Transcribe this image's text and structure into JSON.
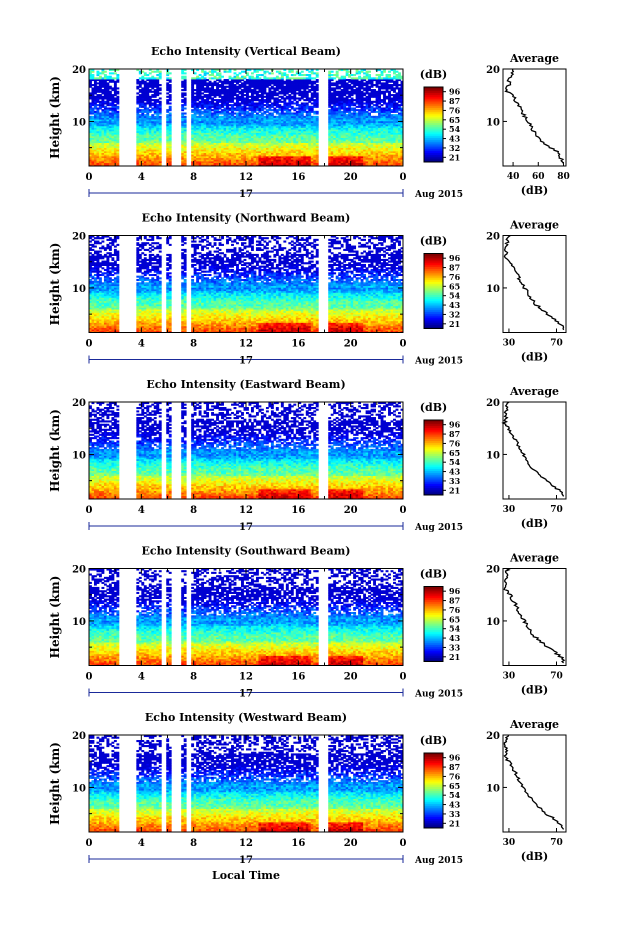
{
  "chart_data": {
    "type": "heatmap",
    "xlabel": "Local Time",
    "date_label": "Aug 2015",
    "day_label": "17",
    "ylabel": "Height (km)",
    "x_ticks": [
      "0",
      "4",
      "8",
      "12",
      "16",
      "20",
      "0"
    ],
    "x_tick_values": [
      0,
      4,
      8,
      12,
      16,
      20,
      24
    ],
    "xlim": [
      0,
      24
    ],
    "y_ticks": [
      "20",
      "10"
    ],
    "y_tick_values": [
      20,
      10
    ],
    "ylim": [
      1.5,
      20
    ],
    "data_gaps_hours": [
      [
        2.2,
        3.6
      ],
      [
        5.5,
        5.9
      ],
      [
        6.3,
        7.0
      ],
      [
        7.4,
        7.8
      ],
      [
        17.6,
        18.3
      ]
    ],
    "colorbar_label": "(dB)",
    "average_title": "Average",
    "average_xlabel": "(dB)",
    "panels": [
      {
        "title": "Echo Intensity (Vertical Beam)",
        "colorbar_ticks": [
          "96",
          "87",
          "76",
          "65",
          "54",
          "43",
          "32",
          "21"
        ],
        "avg_xticks": [
          "40",
          "60",
          "80"
        ],
        "avg_xlim": [
          32,
          82
        ],
        "avg_height": [
          20,
          19,
          18,
          17,
          16,
          15,
          14,
          13,
          12,
          11,
          10,
          9,
          8,
          7,
          6,
          5,
          4,
          3,
          2
        ],
        "avg_db": [
          40,
          39,
          36,
          37,
          34,
          40,
          42,
          45,
          47,
          49,
          52,
          54,
          57,
          60,
          64,
          70,
          76,
          78,
          80
        ]
      },
      {
        "title": "Echo Intensity (Northward Beam)",
        "colorbar_ticks": [
          "96",
          "87",
          "76",
          "65",
          "54",
          "43",
          "32",
          "21"
        ],
        "avg_xticks": [
          "30",
          "70"
        ],
        "avg_xlim": [
          25,
          78
        ],
        "avg_height": [
          20,
          19,
          18,
          17,
          16,
          15,
          14,
          13,
          12,
          11,
          10,
          9,
          8,
          7,
          6,
          5,
          4,
          3,
          2
        ],
        "avg_db": [
          30,
          29,
          27,
          28,
          26,
          31,
          33,
          36,
          38,
          41,
          43,
          46,
          49,
          52,
          57,
          62,
          69,
          74,
          76
        ]
      },
      {
        "title": "Echo Intensity (Eastward Beam)",
        "colorbar_ticks": [
          "96",
          "87",
          "76",
          "65",
          "54",
          "43",
          "33",
          "21"
        ],
        "avg_xticks": [
          "30",
          "70"
        ],
        "avg_xlim": [
          25,
          78
        ],
        "avg_height": [
          20,
          19,
          18,
          17,
          16,
          15,
          14,
          13,
          12,
          11,
          10,
          9,
          8,
          7,
          6,
          5,
          4,
          3,
          2
        ],
        "avg_db": [
          29,
          28,
          27,
          28,
          26,
          30,
          32,
          35,
          37,
          40,
          42,
          45,
          48,
          51,
          56,
          61,
          68,
          73,
          76
        ]
      },
      {
        "title": "Echo Intensity (Southward Beam)",
        "colorbar_ticks": [
          "96",
          "87",
          "76",
          "65",
          "54",
          "43",
          "33",
          "21"
        ],
        "avg_xticks": [
          "30",
          "70"
        ],
        "avg_xlim": [
          25,
          78
        ],
        "avg_height": [
          20,
          19,
          18,
          17,
          16,
          15,
          14,
          13,
          12,
          11,
          10,
          9,
          8,
          7,
          6,
          5,
          4,
          3,
          2
        ],
        "avg_db": [
          29,
          28,
          27,
          29,
          27,
          31,
          33,
          36,
          38,
          40,
          43,
          46,
          48,
          52,
          57,
          62,
          69,
          74,
          76
        ]
      },
      {
        "title": "Echo Intensity (Westward Beam)",
        "colorbar_ticks": [
          "96",
          "87",
          "76",
          "65",
          "54",
          "43",
          "33",
          "21"
        ],
        "avg_xticks": [
          "30",
          "70"
        ],
        "avg_xlim": [
          25,
          78
        ],
        "avg_height": [
          20,
          19,
          18,
          17,
          16,
          15,
          14,
          13,
          12,
          11,
          10,
          9,
          8,
          7,
          6,
          5,
          4,
          3,
          2
        ],
        "avg_db": [
          29,
          28,
          27,
          28,
          26,
          30,
          33,
          35,
          37,
          40,
          42,
          45,
          48,
          51,
          56,
          61,
          68,
          73,
          76
        ]
      }
    ]
  }
}
